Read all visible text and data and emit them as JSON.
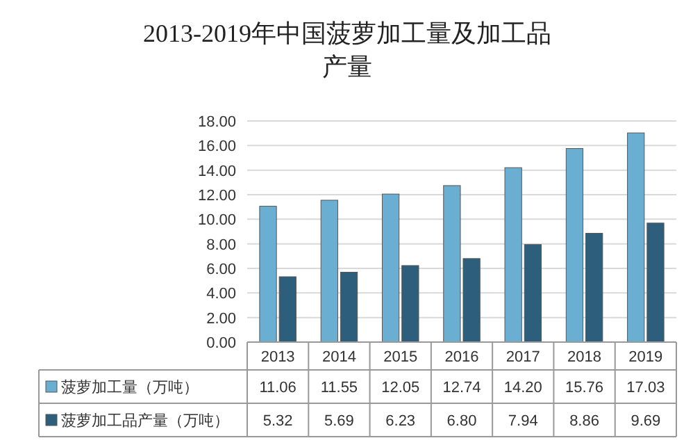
{
  "chart_data": {
    "type": "bar",
    "title": "2013-2019年中国菠萝加工量及加工品产量",
    "categories": [
      "2013",
      "2014",
      "2015",
      "2016",
      "2017",
      "2018",
      "2019"
    ],
    "series": [
      {
        "name": "菠萝加工量（万吨）",
        "color": "#6aaed2",
        "values": [
          11.06,
          11.55,
          12.05,
          12.74,
          14.2,
          15.76,
          17.03
        ],
        "value_labels": [
          "11.06",
          "11.55",
          "12.05",
          "12.74",
          "14.20",
          "15.76",
          "17.03"
        ]
      },
      {
        "name": "菠萝加工品产量（万吨）",
        "color": "#2d5f7c",
        "values": [
          5.32,
          5.69,
          6.23,
          6.8,
          7.94,
          8.86,
          9.69
        ],
        "value_labels": [
          "5.32",
          "5.69",
          "6.23",
          "6.80",
          "7.94",
          "8.86",
          "9.69"
        ]
      }
    ],
    "ylim": [
      0,
      18
    ],
    "yticks": [
      {
        "value": 0,
        "label": "0.00"
      },
      {
        "value": 2,
        "label": "2.00"
      },
      {
        "value": 4,
        "label": "4.00"
      },
      {
        "value": 6,
        "label": "6.00"
      },
      {
        "value": 8,
        "label": "8.00"
      },
      {
        "value": 10,
        "label": "10.00"
      },
      {
        "value": 12,
        "label": "12.00"
      },
      {
        "value": 14,
        "label": "14.00"
      },
      {
        "value": 16,
        "label": "16.00"
      },
      {
        "value": 18,
        "label": "18.00"
      }
    ],
    "grid": "y",
    "legend": "bottom left"
  }
}
